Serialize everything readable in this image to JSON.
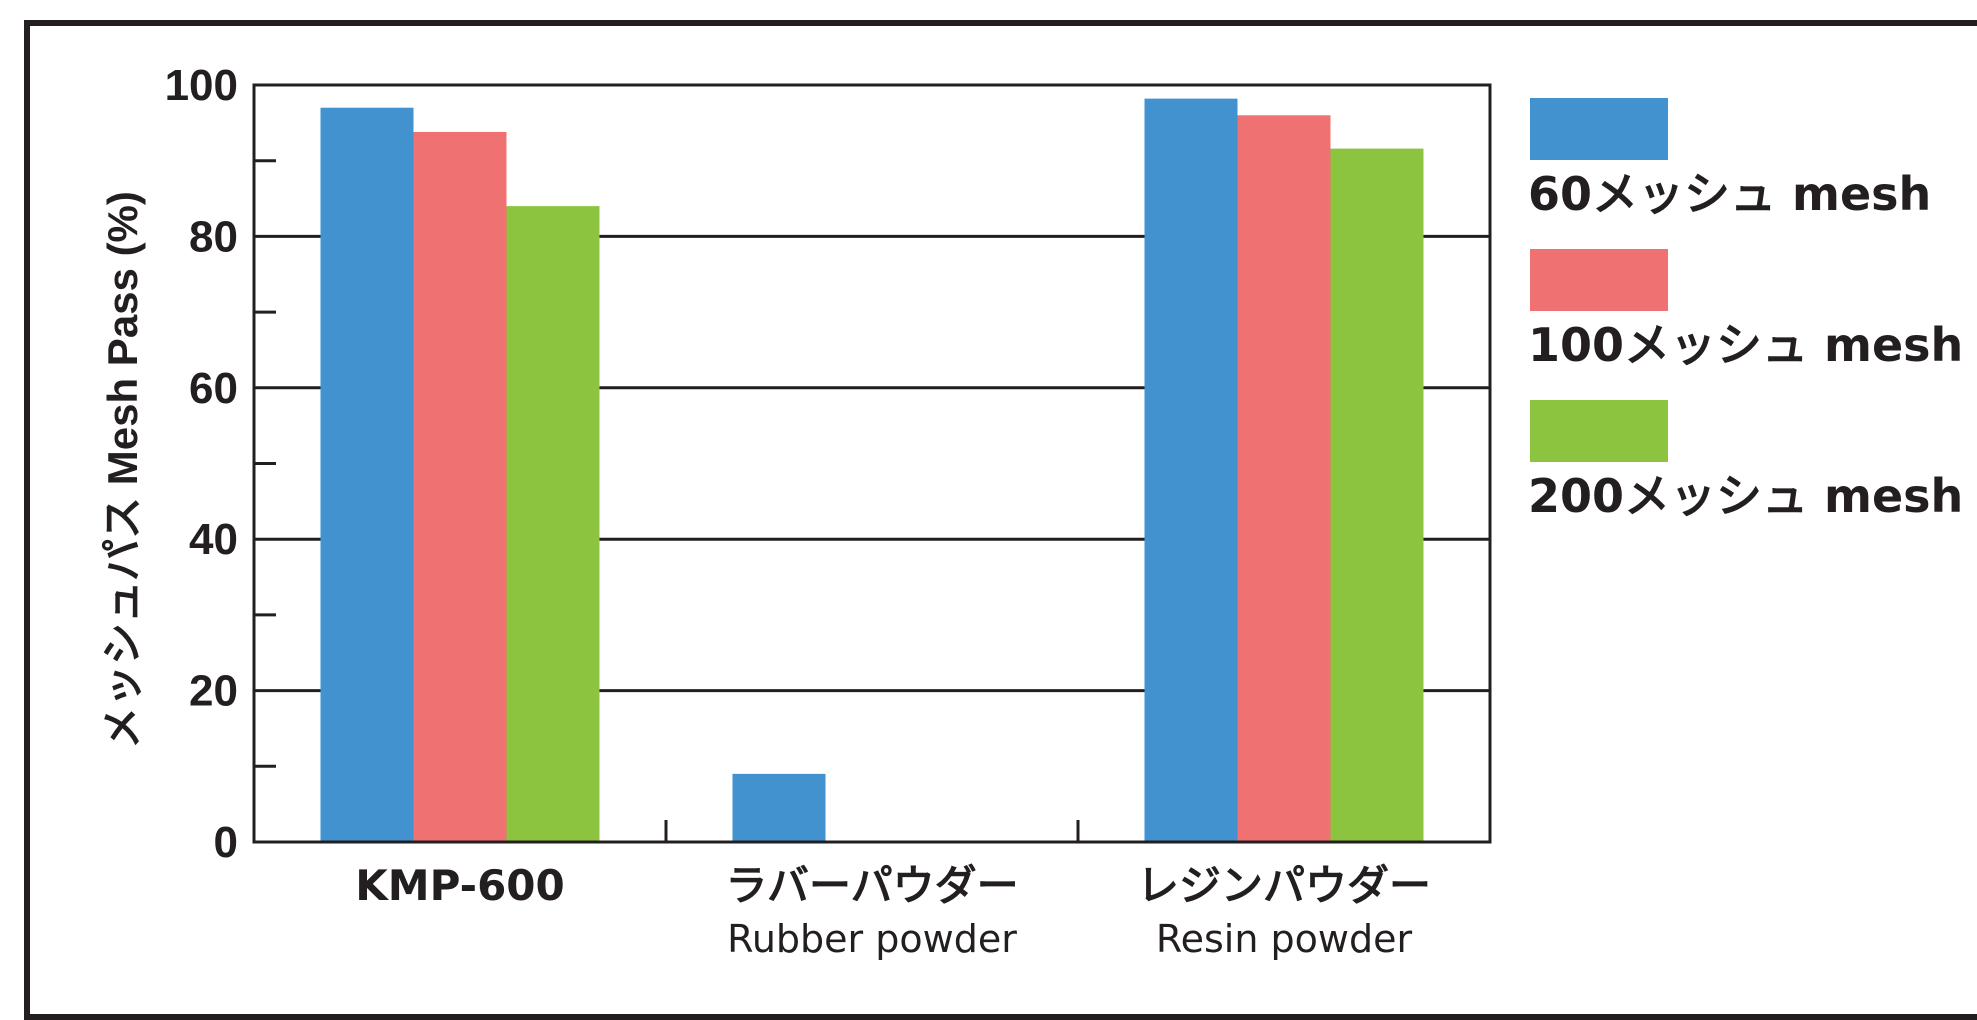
{
  "chart_data": {
    "type": "bar",
    "ylabel": "メッシュパス Mesh Pass (%)",
    "ylim": [
      0,
      100
    ],
    "yticks": [
      "0",
      "20",
      "40",
      "60",
      "80",
      "100"
    ],
    "grid": true,
    "categories": [
      {
        "line1": "KMP-600",
        "line2": ""
      },
      {
        "line1": "ラバーパウダー",
        "line2": "Rubber powder"
      },
      {
        "line1": "レジンパウダー",
        "line2": "Resin powder"
      }
    ],
    "series": [
      {
        "name": "60メッシュ mesh",
        "color": "#4292d0",
        "values": [
          97,
          9,
          98.2
        ]
      },
      {
        "name": "100メッシュ mesh",
        "color": "#f07171",
        "values": [
          93.8,
          0,
          96
        ]
      },
      {
        "name": "200メッシュ mesh",
        "color": "#8cc43f",
        "values": [
          84,
          0,
          91.6
        ]
      }
    ],
    "legend_position": "right"
  }
}
